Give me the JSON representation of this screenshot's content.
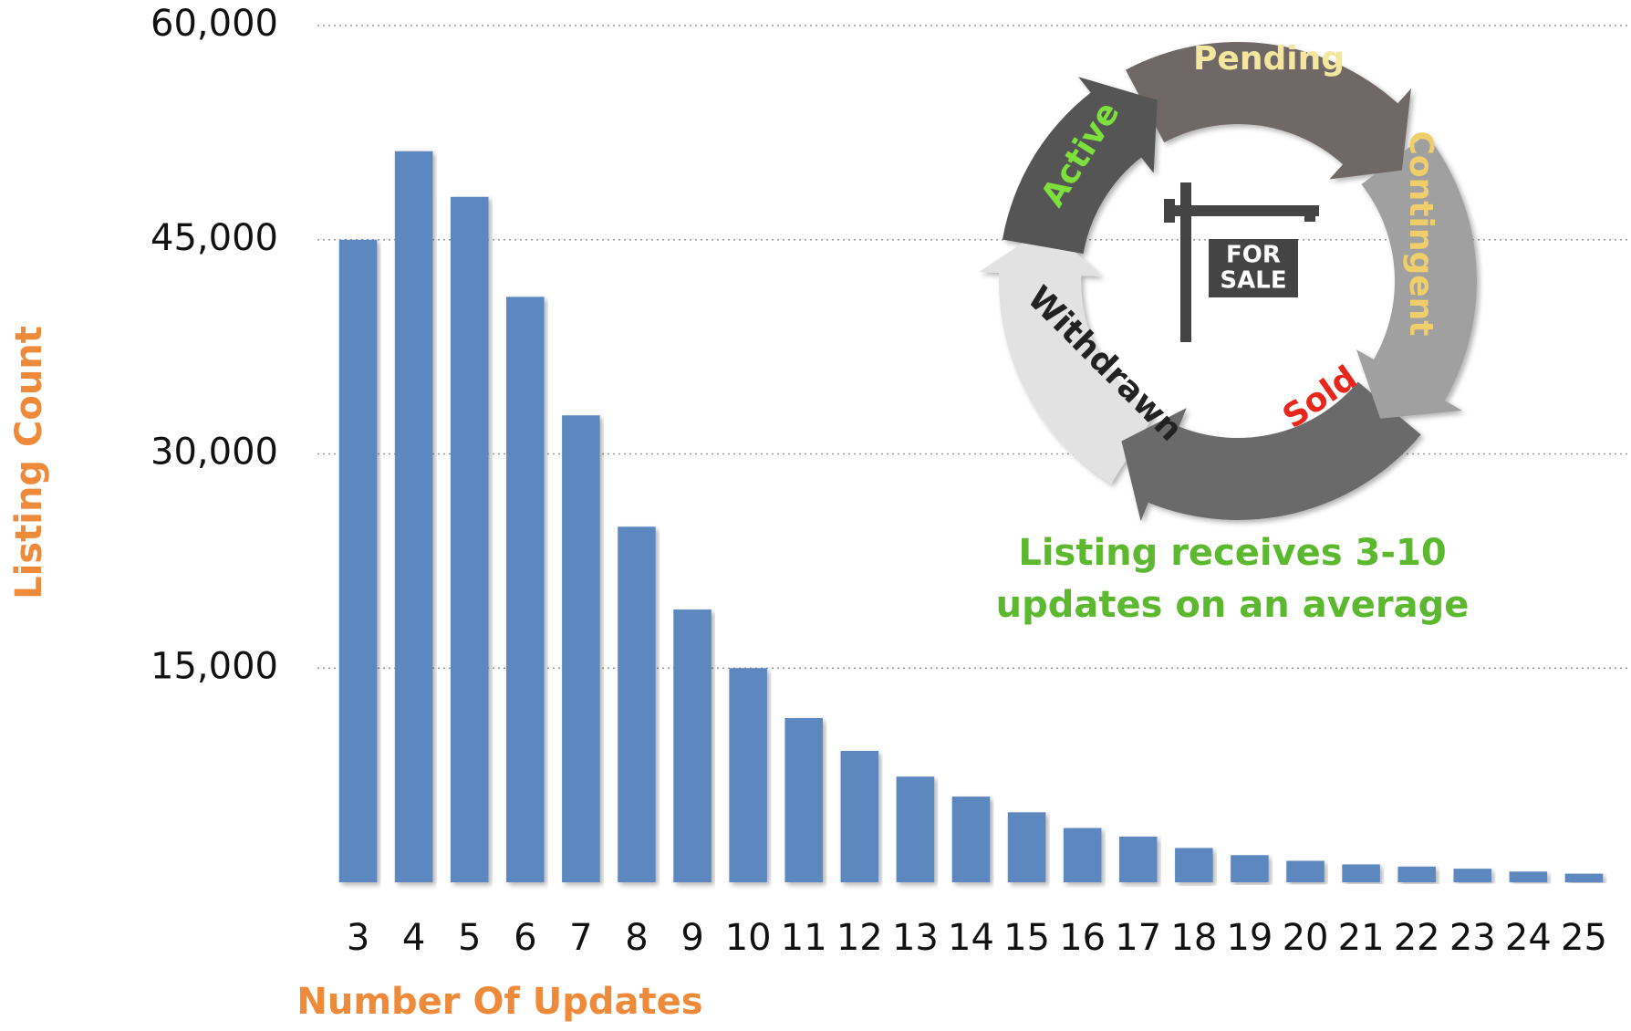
{
  "chart_data": {
    "type": "bar",
    "x_label": "Number Of Updates",
    "y_label": "Listing Count",
    "categories": [
      "3",
      "4",
      "5",
      "6",
      "7",
      "8",
      "9",
      "10",
      "11",
      "12",
      "13",
      "14",
      "15",
      "16",
      "17",
      "18",
      "19",
      "20",
      "21",
      "22",
      "23",
      "24",
      "25"
    ],
    "values": [
      45000,
      51200,
      48000,
      41000,
      32700,
      24900,
      19100,
      15000,
      11500,
      9200,
      7400,
      6000,
      4900,
      3800,
      3200,
      2400,
      1900,
      1500,
      1250,
      1100,
      950,
      750,
      600
    ],
    "color": "#5b87bf",
    "ylim": [
      0,
      60000
    ],
    "yticks": [
      {
        "value": 15000,
        "label": "15,000"
      },
      {
        "value": 30000,
        "label": "30,000"
      },
      {
        "value": 45000,
        "label": "45,000"
      },
      {
        "value": 60000,
        "label": "60,000"
      }
    ],
    "grid": true,
    "annotation": [
      "Listing receives 3-10",
      "updates on an average"
    ],
    "cycle": [
      "Active",
      "Pending",
      "Contingent",
      "Sold",
      "Withdrawn"
    ],
    "sign": [
      "FOR",
      "SALE"
    ]
  }
}
